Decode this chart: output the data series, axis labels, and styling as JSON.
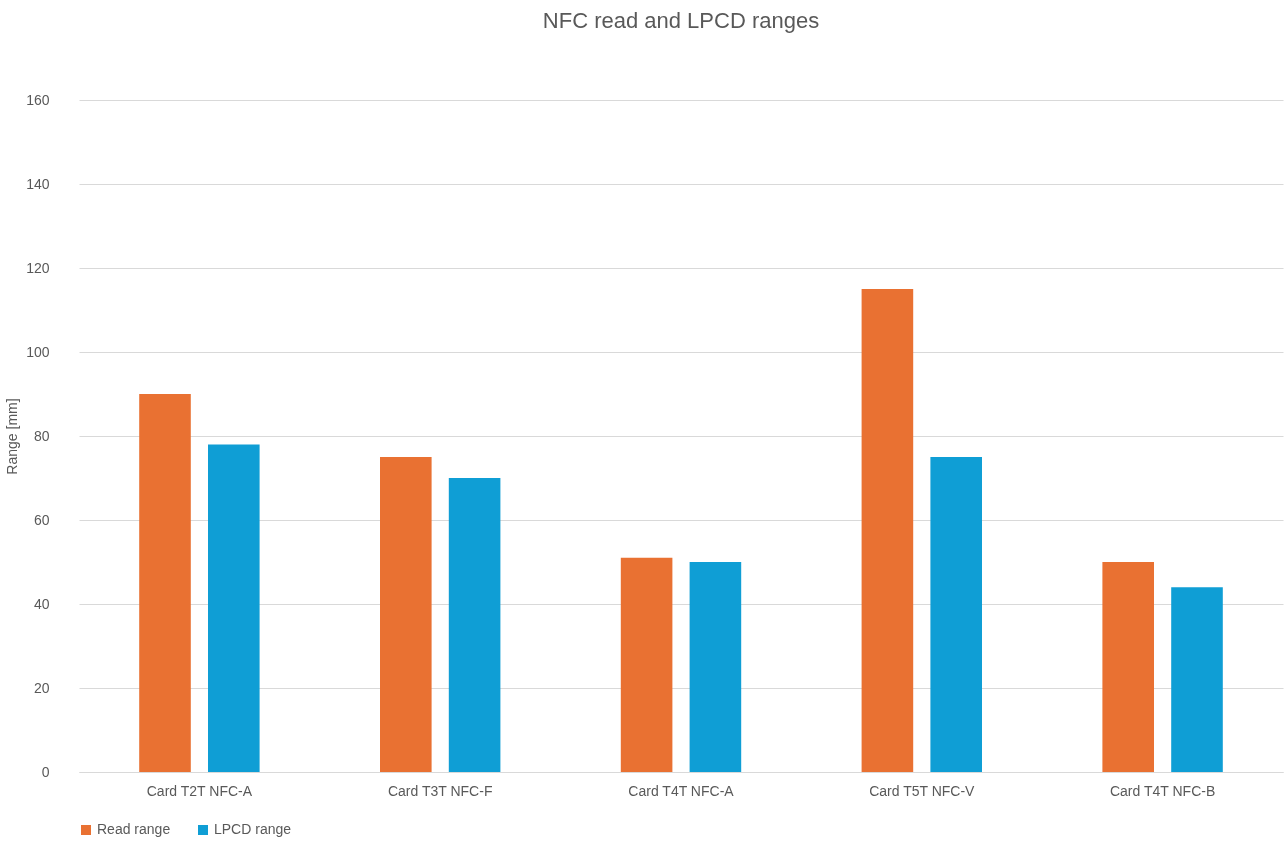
{
  "chart_data": {
    "type": "bar",
    "title": "NFC read and LPCD ranges",
    "ylabel": "Range [mm]",
    "categories": [
      "Card T2T NFC-A",
      "Card T3T NFC-F",
      "Card T4T NFC-A",
      "Card T5T NFC-V",
      "Card T4T NFC-B"
    ],
    "series": [
      {
        "name": "Read range",
        "color": "#e97132",
        "values": [
          90,
          75,
          51,
          115,
          50
        ]
      },
      {
        "name": "LPCD range",
        "color": "#0f9ed5",
        "values": [
          78,
          70,
          50,
          75,
          44
        ]
      }
    ],
    "ylim": [
      0,
      160
    ],
    "yticks": [
      0,
      20,
      40,
      60,
      80,
      100,
      120,
      140,
      160
    ],
    "grid": "y",
    "legend": "bottom"
  }
}
